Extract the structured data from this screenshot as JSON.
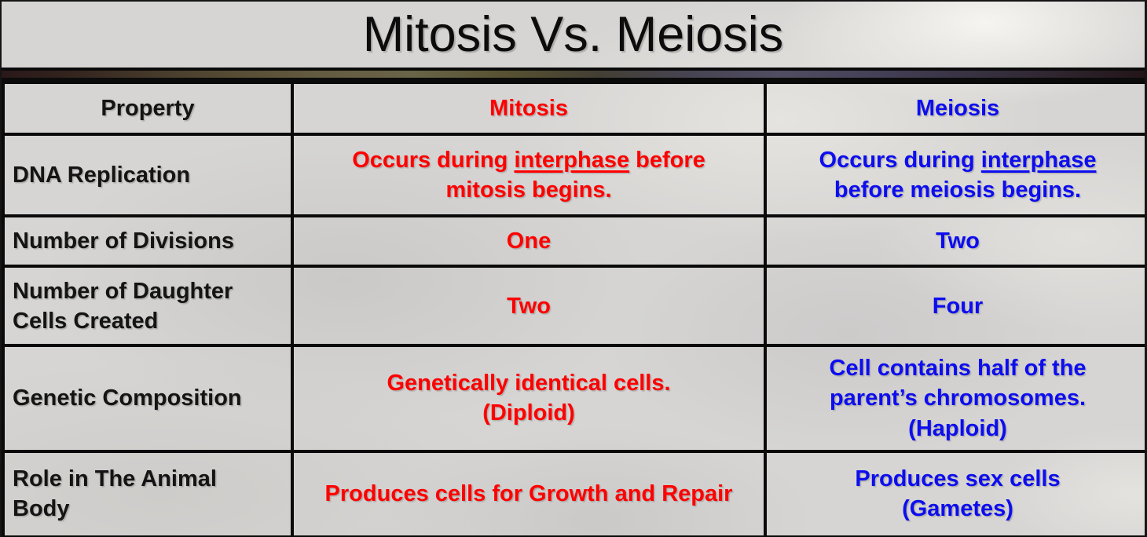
{
  "slide": {
    "title": "Mitosis Vs. Meiosis"
  },
  "colors": {
    "mitosis_text": "#ff0000",
    "meiosis_text": "#0d0dee",
    "heading_text": "#141414",
    "table_border": "#0a0a0a",
    "background": "#d6d5d3"
  },
  "table": {
    "header": {
      "property": "Property",
      "mitosis": "Mitosis",
      "meiosis": "Meiosis"
    },
    "rows": [
      {
        "property": "DNA Replication",
        "mitosis": {
          "prefix": "Occurs during ",
          "underlined": "interphase",
          "suffix": " before\nmitosis begins."
        },
        "meiosis": {
          "prefix": "Occurs during ",
          "underlined": "interphase",
          "suffix": "\nbefore meiosis begins."
        }
      },
      {
        "property": "Number of Divisions",
        "mitosis": "One",
        "meiosis": "Two"
      },
      {
        "property": "Number of Daughter\nCells Created",
        "mitosis": "Two",
        "meiosis": "Four"
      },
      {
        "property": "Genetic Composition",
        "mitosis": "Genetically identical cells.\n(Diploid)",
        "meiosis": "Cell contains half of the\nparent’s chromosomes.\n(Haploid)"
      },
      {
        "property": "Role in The Animal\nBody",
        "mitosis": "Produces cells for Growth and Repair",
        "meiosis": "Produces sex cells\n(Gametes)"
      }
    ]
  }
}
